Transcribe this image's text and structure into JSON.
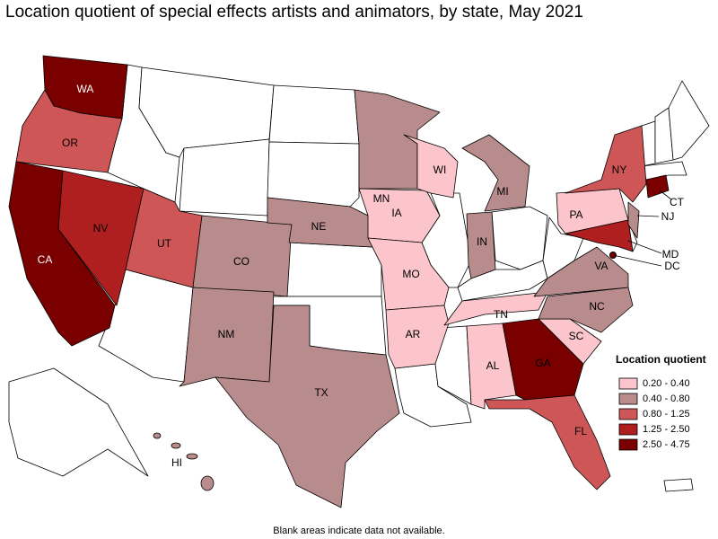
{
  "header": {
    "title": "Location quotient of special effects artists and animators, by state, May 2021"
  },
  "legend": {
    "title": "Location quotient",
    "items": [
      {
        "label": "0.20 - 0.40",
        "color": "#fcc5cc",
        "states": [
          "IA",
          "MO",
          "AR",
          "WI",
          "TN",
          "AL",
          "SC",
          "PA"
        ]
      },
      {
        "label": "0.40 - 0.80",
        "color": "#b88c8c",
        "states": [
          "CO",
          "NM",
          "TX",
          "NE",
          "MN",
          "MI",
          "IN",
          "NC",
          "VA",
          "NJ",
          "HI"
        ]
      },
      {
        "label": "0.80 - 1.25",
        "color": "#cf5656",
        "states": [
          "OR",
          "UT",
          "FL",
          "NY"
        ]
      },
      {
        "label": "1.25 - 2.50",
        "color": "#af1f1f",
        "states": [
          "NV",
          "MD"
        ]
      },
      {
        "label": "2.50 - 4.75",
        "color": "#7a0000",
        "states": [
          "WA",
          "CA",
          "GA",
          "CT",
          "DC"
        ]
      }
    ]
  },
  "footnote": "Blank areas indicate data not available."
}
